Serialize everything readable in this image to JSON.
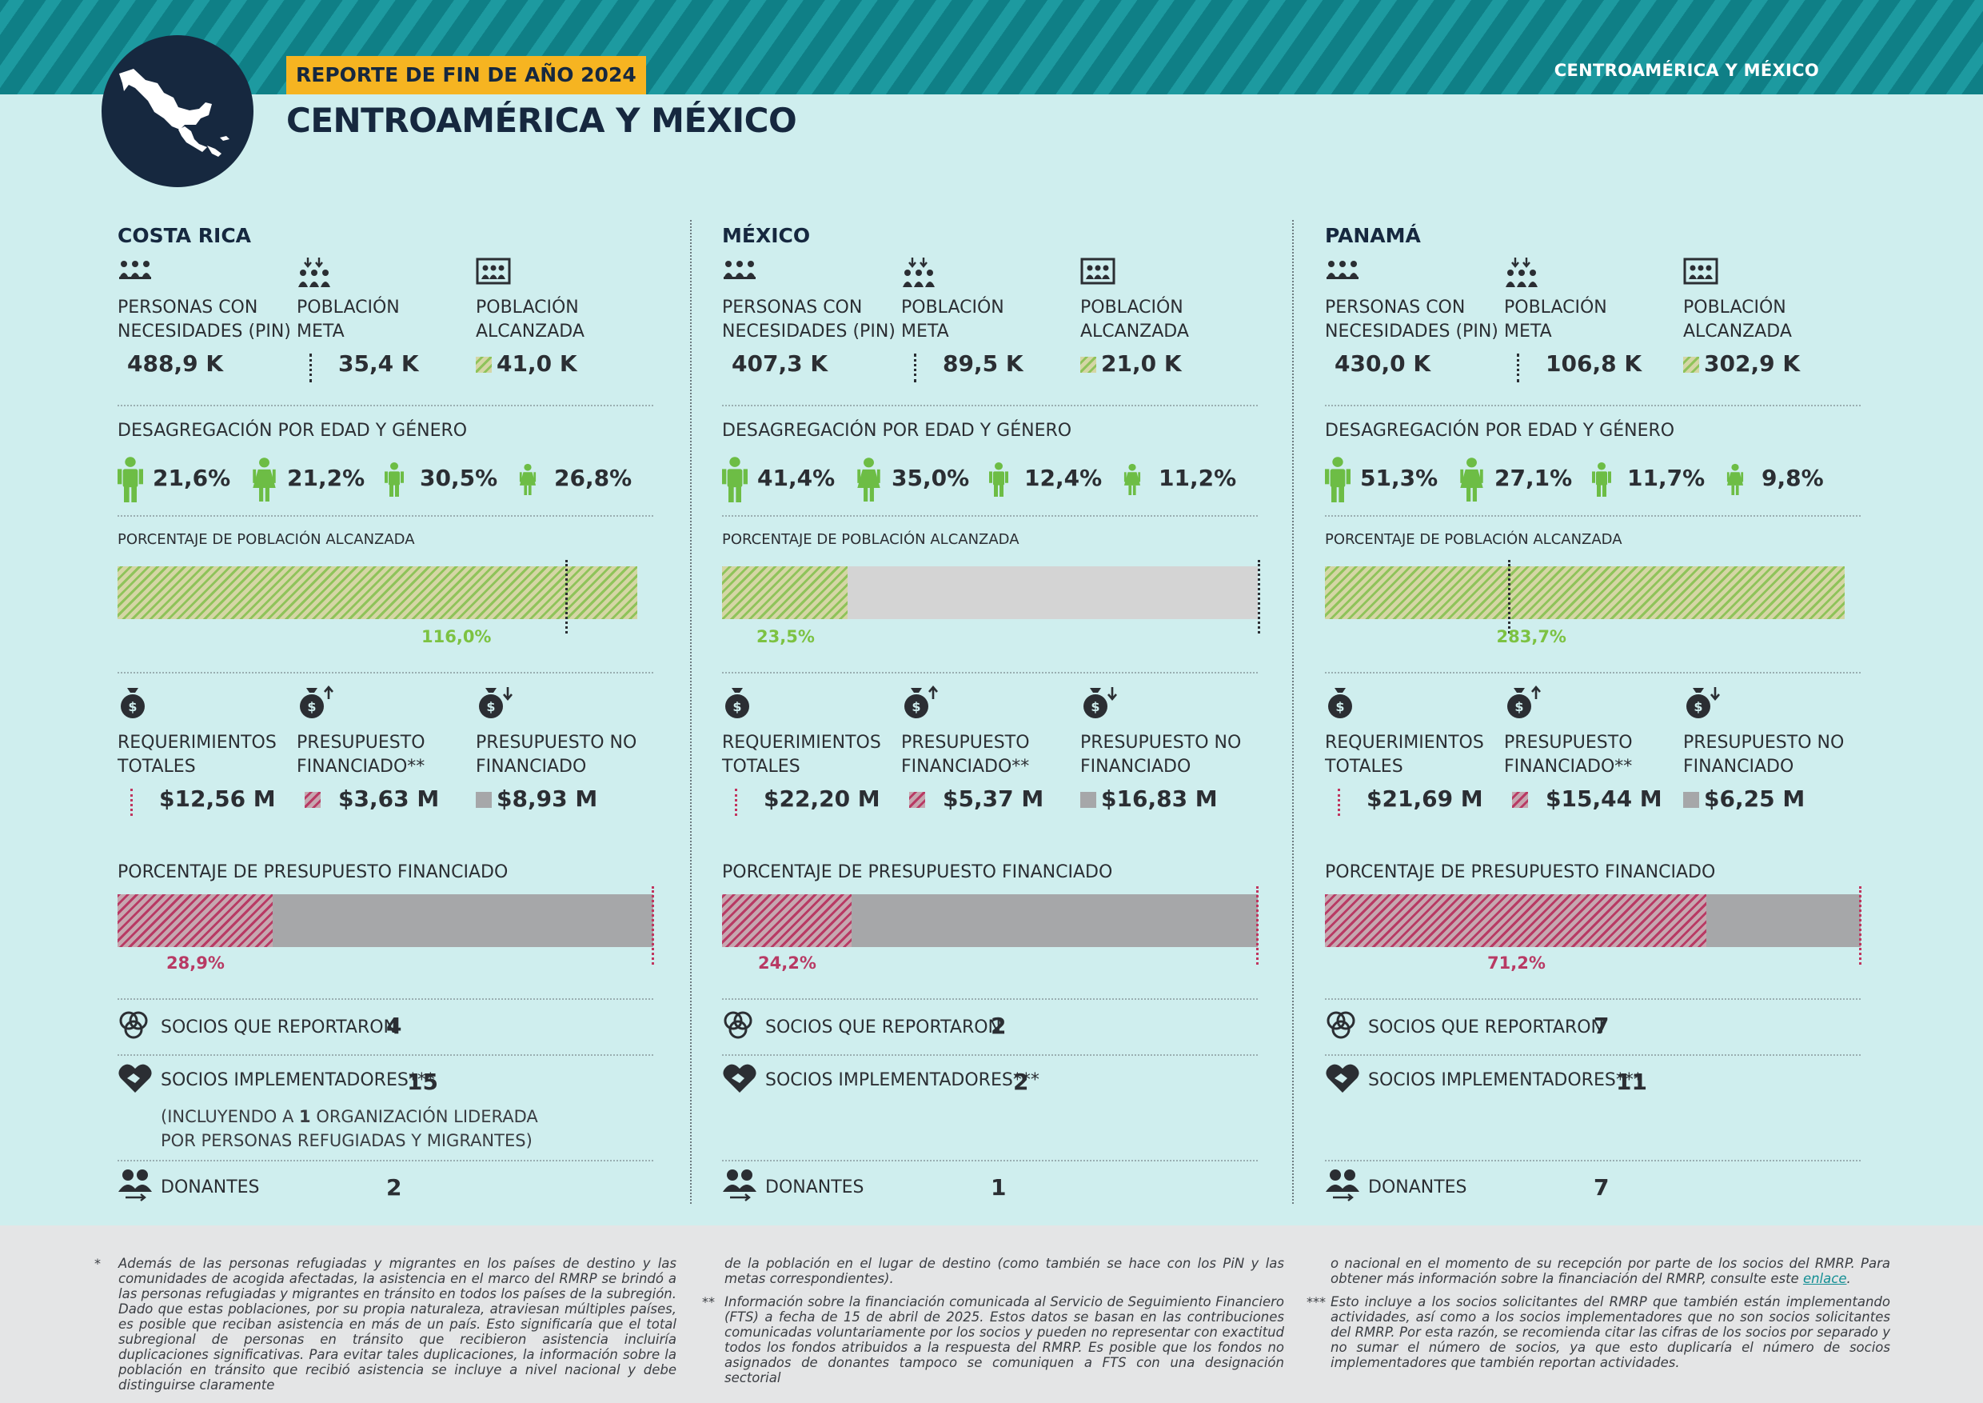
{
  "header": {
    "band_label": "CENTROAMÉRICA Y MÉXICO",
    "badge": "REPORTE DE FIN DE AÑO 2024",
    "title": "CENTROAMÉRICA Y MÉXICO",
    "map_icon": "central-america-map-icon"
  },
  "labels": {
    "pin": "PERSONAS CON",
    "pin2": "NECESIDADES (PIN)",
    "meta": "POBLACIÓN",
    "meta2": "META",
    "alc": "POBLACIÓN",
    "alc2": "ALCANZADA",
    "desag": "DESAGREGACIÓN POR EDAD Y GÉNERO",
    "pct_pob": "PORCENTAJE DE POBLACIÓN ALCANZADA",
    "req": "REQUERIMIENTOS",
    "req2": "TOTALES",
    "fin": "PRESUPUESTO",
    "fin2": "FINANCIADO**",
    "nofin": "PRESUPUESTO NO",
    "nofin2": "FINANCIADO",
    "pct_pres": "PORCENTAJE DE PRESUPUESTO FINANCIADO",
    "socios_rep": "SOCIOS QUE REPORTARON",
    "socios_impl": "SOCIOS IMPLEMENTADORES***",
    "donantes": "DONANTES"
  },
  "colors": {
    "green": "#7cc242",
    "red": "#c0355e",
    "grey": "#a6a7a9",
    "navy": "#16283f"
  },
  "countries": [
    {
      "name": "COSTA RICA",
      "pin": "488,9 K",
      "meta": "35,4 K",
      "alcanzada": "41,0 K",
      "desag": [
        "21,6%",
        "21,2%",
        "30,5%",
        "26,8%"
      ],
      "pob_pct_label": "116,0%",
      "pob_reached_ratio": 1.16,
      "req": "$12,56 M",
      "fin": "$3,63 M",
      "nofin": "$8,93 M",
      "pres_pct_label": "28,9%",
      "pres_ratio": 0.289,
      "socios_rep": "4",
      "socios_impl": "15",
      "impl_note_1a": "(INCLUYENDO A ",
      "impl_note_1b": "1",
      "impl_note_1c": " ORGANIZACIÓN LIDERADA",
      "impl_note_2": "POR PERSONAS REFUGIADAS Y MIGRANTES)",
      "donantes": "2"
    },
    {
      "name": "MÉXICO",
      "pin": "407,3 K",
      "meta": "89,5 K",
      "alcanzada": "21,0 K",
      "desag": [
        "41,4%",
        "35,0%",
        "12,4%",
        "11,2%"
      ],
      "pob_pct_label": "23,5%",
      "pob_reached_ratio": 0.235,
      "req": "$22,20 M",
      "fin": "$5,37 M",
      "nofin": "$16,83 M",
      "pres_pct_label": "24,2%",
      "pres_ratio": 0.242,
      "socios_rep": "2",
      "socios_impl": "2",
      "donantes": "1"
    },
    {
      "name": "PANAMÁ",
      "pin": "430,0 K",
      "meta": "106,8 K",
      "alcanzada": "302,9 K",
      "desag": [
        "51,3%",
        "27,1%",
        "11,7%",
        "9,8%"
      ],
      "pob_pct_label": "283,7%",
      "pob_reached_ratio": 2.837,
      "req": "$21,69 M",
      "fin": "$15,44 M",
      "nofin": "$6,25 M",
      "pres_pct_label": "71,2%",
      "pres_ratio": 0.712,
      "socios_rep": "7",
      "socios_impl": "11",
      "donantes": "7"
    }
  ],
  "footnotes": {
    "m1": "*",
    "m2": "**",
    "m3": "***",
    "f1": "Además de las personas refugiadas y migrantes en los países de destino y las comunidades de acogida afectadas, la asistencia en el marco del RMRP se brindó a las personas refugiadas y migrantes en tránsito en todos los países de la subregión. Dado que estas poblaciones, por su propia naturaleza, atraviesan múltiples países, es posible que reciban asistencia en más de un país. Esto significaría que el total subregional de personas en tránsito que recibieron asistencia incluiría duplicaciones significativas. Para evitar tales duplicaciones, la información sobre la población en tránsito que recibió asistencia se incluye a nivel nacional y debe distinguirse claramente",
    "f1b": "de la población en el lugar de destino (como también se hace con los PiN y las metas correspondientes).",
    "f2": "Información sobre la financiación comunicada al Servicio de Seguimiento Financiero (FTS) a fecha de 15 de abril de 2025. Estos datos se basan en las contribuciones comunicadas voluntariamente por los socios y pueden no representar con exactitud todos los fondos atribuidos a la respuesta del RMRP. Es posible que los fondos no asignados de donantes tampoco se comuniquen a FTS con una designación sectorial",
    "f2b": "o nacional en el momento de su recepción por parte de los socios del RMRP. Para obtener más información sobre la financiación del RMRP, consulte este ",
    "f2_link": "enlace",
    "f2c": ".",
    "f3": "Esto incluye a los socios solicitantes del RMRP que también están implementando actividades, así como a los socios implementadores que no son socios solicitantes del RMRP. Por esta razón, se recomienda citar las cifras de los socios por separado y no sumar el número de socios, ya que esto duplicaría el número de socios implementadores que también reportan actividades."
  }
}
